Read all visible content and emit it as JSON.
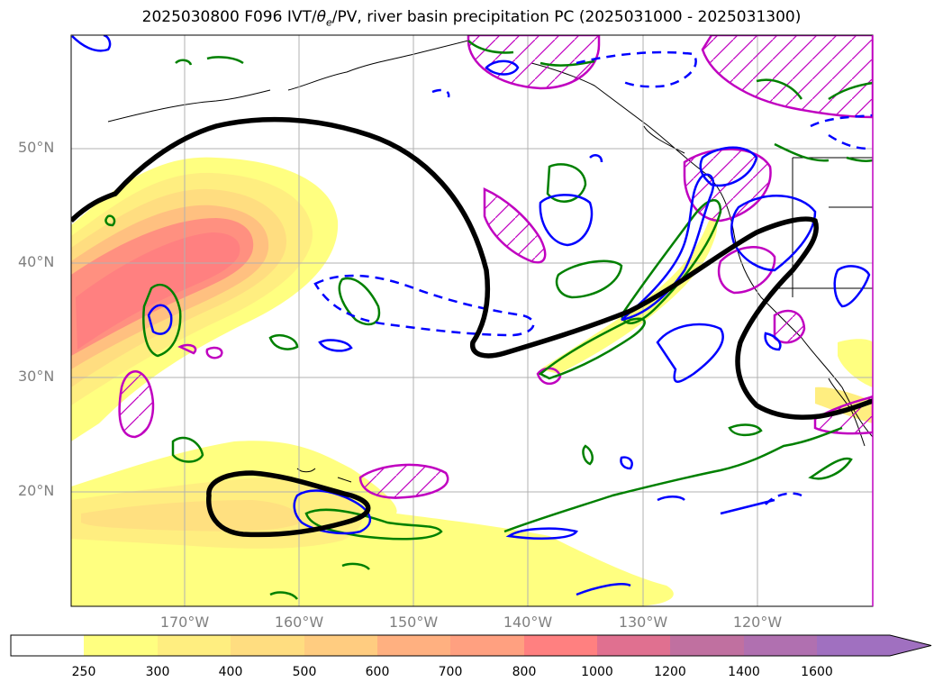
{
  "title": {
    "prefix": "2025030800 F096 IVT/",
    "theta": "θ",
    "theta_sub": "e",
    "suffix": "/PV, river basin precipitation PC (2025031000 - 2025031300)"
  },
  "map": {
    "lat_labels": [
      "50°N",
      "40°N",
      "30°N",
      "20°N"
    ],
    "lon_labels": [
      "170°W",
      "160°W",
      "150°W",
      "140°W",
      "130°W",
      "120°W"
    ],
    "gridlines": true
  },
  "colorbar": {
    "tick_labels": [
      "250",
      "300",
      "400",
      "500",
      "600",
      "700",
      "800",
      "1000",
      "1200",
      "1400",
      "1600"
    ],
    "colors": [
      "#ffffff",
      "#ffff80",
      "#ffee80",
      "#ffdd80",
      "#ffcc80",
      "#ffb080",
      "#ffa080",
      "#ff8080",
      "#e07090",
      "#c070a0",
      "#b070b0",
      "#a070c0"
    ],
    "extend": "max"
  },
  "layers": {
    "ivt_shading": "yellow-red",
    "theta_e_contours": "green",
    "pv_contours": "blue",
    "precip_pc_contours": "magenta hatched",
    "jet_contour": "black"
  }
}
